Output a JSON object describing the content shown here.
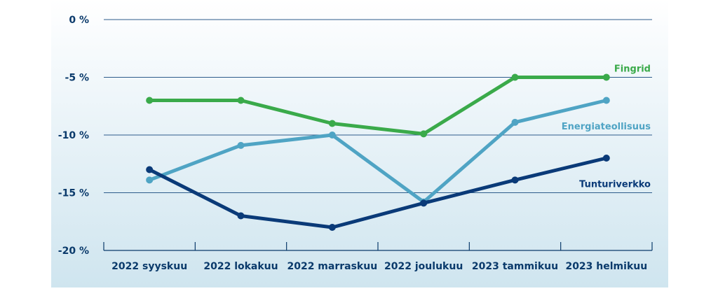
{
  "chart_data": {
    "type": "line",
    "title": "",
    "xlabel": "",
    "ylabel": "",
    "ylim": [
      -20,
      0
    ],
    "yticks": [
      0,
      -5,
      -10,
      -15,
      -20
    ],
    "ytick_labels": [
      "0 %",
      "-5 %",
      "-10 %",
      "-15 %",
      "-20 %"
    ],
    "categories": [
      "2022 syyskuu",
      "2022 lokakuu",
      "2022 marraskuu",
      "2022 joulukuu",
      "2023 tammikuu",
      "2023 helmikuu"
    ],
    "grid": true,
    "series": [
      {
        "name": "Fingrid",
        "color": "#3aaa4a",
        "values": [
          -7,
          -7,
          -9,
          -9.9,
          -5,
          -5
        ]
      },
      {
        "name": "Energiateollisuus",
        "color": "#4fa4c4",
        "values": [
          -13.9,
          -10.9,
          -10,
          -15.8,
          -8.9,
          -7
        ]
      },
      {
        "name": "Tunturiverkko",
        "color": "#0a3a78",
        "values": [
          -13,
          -17,
          -18,
          -15.9,
          -13.9,
          -12
        ]
      }
    ]
  }
}
